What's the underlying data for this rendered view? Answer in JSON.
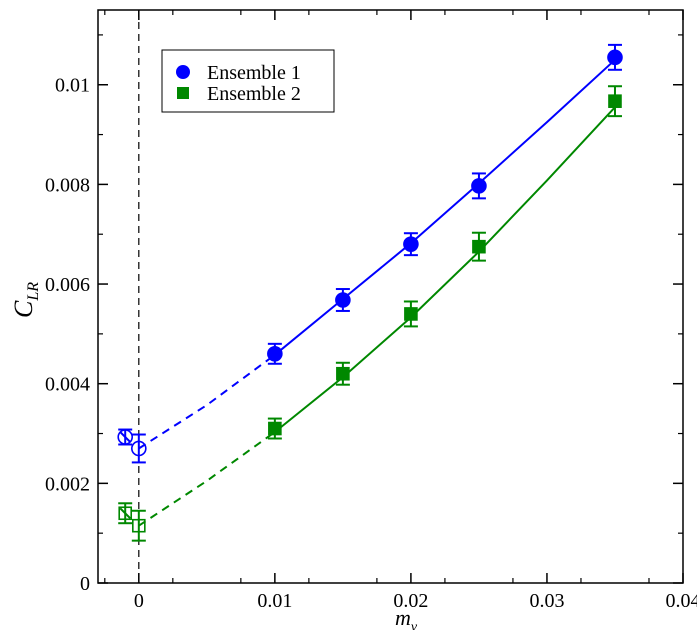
{
  "chart_data": {
    "type": "scatter",
    "title": "",
    "xlabel": "m",
    "xlabel_sub": "v",
    "ylabel": "C",
    "ylabel_sub": "LR",
    "xlim": [
      -0.003,
      0.04
    ],
    "ylim": [
      0,
      0.0115
    ],
    "x_ticks": [
      0,
      0.01,
      0.02,
      0.03,
      0.04
    ],
    "x_tick_labels": [
      "0",
      "0.01",
      "0.02",
      "0.03",
      "0.04"
    ],
    "y_ticks": [
      0,
      0.002,
      0.004,
      0.006,
      0.008,
      0.01
    ],
    "y_tick_labels": [
      "0",
      "0.002",
      "0.004",
      "0.006",
      "0.008",
      "0.01"
    ],
    "grid": false,
    "legend_position": "top-left",
    "reference_line_x": 0,
    "series": [
      {
        "name": "Ensemble 1",
        "marker": "circle",
        "color": "#0000ff",
        "x": [
          0.01,
          0.015,
          0.02,
          0.025,
          0.035
        ],
        "y": [
          0.0046,
          0.00568,
          0.0068,
          0.00797,
          0.01055
        ],
        "err": [
          0.0002,
          0.00022,
          0.00022,
          0.00025,
          0.00025
        ],
        "extrap_points": [
          {
            "x": 0.0,
            "y": 0.0027,
            "err": 0.00028,
            "style": "open"
          },
          {
            "x": -0.001,
            "y": 0.00293,
            "err": 0.00015,
            "style": "half"
          }
        ],
        "fit_x": [
          0.0,
          0.005,
          0.01,
          0.015,
          0.02,
          0.025,
          0.03,
          0.035
        ],
        "fit_y": [
          0.0027,
          0.00357,
          0.00458,
          0.0057,
          0.00682,
          0.00802,
          0.00925,
          0.0105
        ]
      },
      {
        "name": "Ensemble 2",
        "marker": "square",
        "color": "#008800",
        "x": [
          0.01,
          0.015,
          0.02,
          0.025,
          0.035
        ],
        "y": [
          0.0031,
          0.0042,
          0.0054,
          0.00675,
          0.00967
        ],
        "err": [
          0.0002,
          0.00022,
          0.00025,
          0.00028,
          0.0003
        ],
        "extrap_points": [
          {
            "x": 0.0,
            "y": 0.00115,
            "err": 0.0003,
            "style": "open"
          },
          {
            "x": -0.001,
            "y": 0.0014,
            "err": 0.0002,
            "style": "half"
          }
        ],
        "fit_x": [
          0.0,
          0.005,
          0.01,
          0.015,
          0.02,
          0.025,
          0.03,
          0.035
        ],
        "fit_y": [
          0.00115,
          0.00205,
          0.00303,
          0.00413,
          0.00533,
          0.00665,
          0.00808,
          0.00955
        ]
      }
    ]
  }
}
